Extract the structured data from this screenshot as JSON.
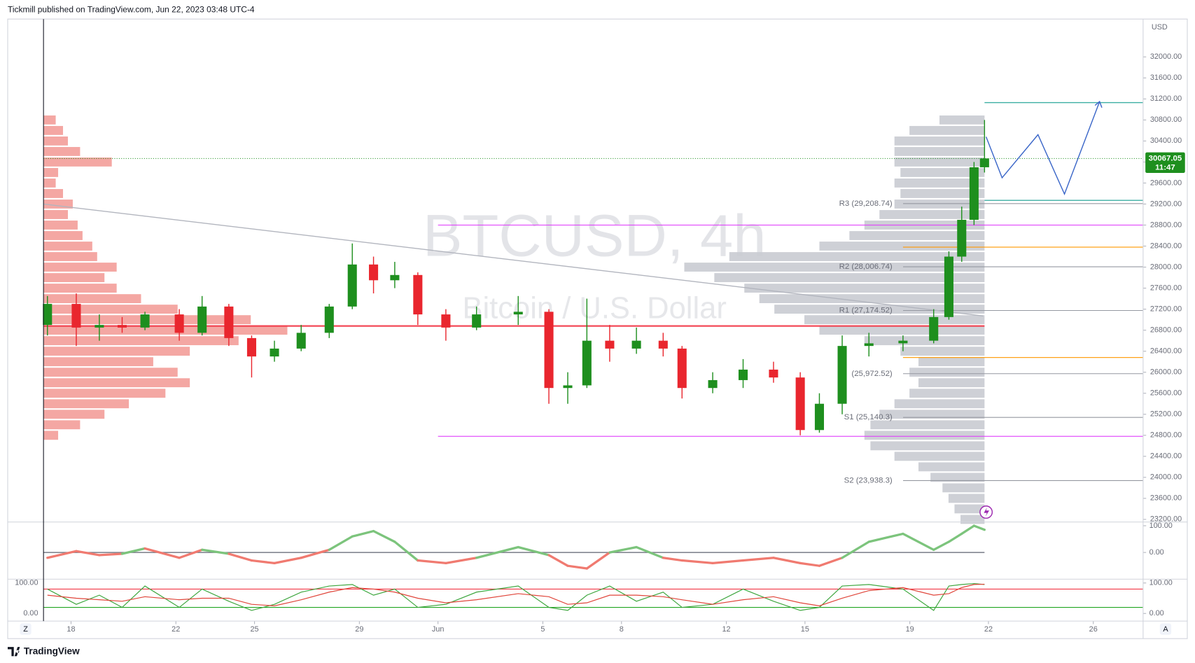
{
  "header": {
    "text": "Tickmill published on TradingView.com, Jun 22, 2023 03:48 UTC-4"
  },
  "footer": {
    "logo": "TradingView"
  },
  "controls": {
    "left": "Z",
    "right": "A"
  },
  "chart_data": [
    {
      "type": "candlestick",
      "title": "BTCUSD, 4h",
      "subtitle": "Bitcoin / U.S. Dollar",
      "y_axis_label": "USD",
      "x": [
        -0.9,
        0.2,
        1.08,
        1.95,
        2.82,
        4.13,
        5.0,
        6.02,
        6.89,
        7.76,
        8.78,
        9.85,
        10.73,
        11.54,
        12.35,
        13.23,
        14.3,
        15.47,
        17.06,
        18.23,
        18.95,
        19.68,
        20.55,
        21.57,
        22.59,
        23.31,
        24.48,
        25.64,
        26.8,
        27.82,
        28.55,
        29.42,
        30.44,
        31.74,
        32.91,
        33.49,
        33.98,
        34.45,
        34.85
      ],
      "open": [
        26900,
        27300,
        26850,
        26900,
        26850,
        27100,
        26750,
        27250,
        26650,
        26300,
        26450,
        26750,
        27250,
        28050,
        27750,
        27850,
        27100,
        26850,
        27100,
        27150,
        25700,
        25750,
        26600,
        26450,
        26600,
        26450,
        25700,
        25850,
        26050,
        25900,
        24900,
        25400,
        26500,
        26550,
        26600,
        27050,
        28200,
        28900,
        29900
      ],
      "high": [
        27450,
        27500,
        27100,
        27050,
        27150,
        27200,
        27450,
        27300,
        26700,
        26600,
        26900,
        27300,
        28450,
        28200,
        28100,
        27900,
        27200,
        27250,
        27450,
        27200,
        26000,
        27400,
        26900,
        26850,
        26750,
        26500,
        26000,
        26250,
        26200,
        26000,
        25600,
        26700,
        26750,
        26700,
        27200,
        28300,
        29150,
        30000,
        30800
      ],
      "low": [
        26700,
        26500,
        26600,
        26750,
        26800,
        26600,
        26700,
        26500,
        25900,
        26200,
        26400,
        26650,
        27200,
        27500,
        27600,
        26900,
        26600,
        26800,
        26900,
        25400,
        25400,
        25700,
        26200,
        26350,
        26300,
        25500,
        25600,
        25700,
        25800,
        24800,
        24850,
        25200,
        26300,
        26400,
        26550,
        27000,
        28100,
        28800,
        29800
      ],
      "close": [
        27300,
        26850,
        26900,
        26850,
        27100,
        26750,
        27250,
        26650,
        26300,
        26450,
        26750,
        27250,
        28050,
        27750,
        27850,
        27100,
        26850,
        27100,
        27150,
        25700,
        25750,
        26600,
        26450,
        26600,
        26450,
        25700,
        25850,
        26050,
        25900,
        24900,
        25400,
        26500,
        26550,
        26600,
        27050,
        28200,
        28900,
        29900,
        30067.05
      ],
      "up_color": "#1e8f1e",
      "down_color": "#e9262e",
      "xlim": [
        -1.05,
        40.9
      ],
      "xticks": [
        {
          "value": 0,
          "label": "18"
        },
        {
          "value": 4,
          "label": "22"
        },
        {
          "value": 7,
          "label": "25"
        },
        {
          "value": 11,
          "label": "29"
        },
        {
          "value": 14,
          "label": "Jun"
        },
        {
          "value": 18,
          "label": "5"
        },
        {
          "value": 21,
          "label": "8"
        },
        {
          "value": 25,
          "label": "12"
        },
        {
          "value": 28,
          "label": "15"
        },
        {
          "value": 32,
          "label": "19"
        },
        {
          "value": 35,
          "label": "22"
        },
        {
          "value": 39,
          "label": "26"
        }
      ],
      "ylim": [
        23150,
        32720
      ],
      "yticks": [
        {
          "value": 23200,
          "label": "23200.00"
        },
        {
          "value": 23600,
          "label": "23600.00"
        },
        {
          "value": 24000,
          "label": "24000.00"
        },
        {
          "value": 24400,
          "label": "24400.00"
        },
        {
          "value": 24800,
          "label": "24800.00"
        },
        {
          "value": 25200,
          "label": "25200.00"
        },
        {
          "value": 25600,
          "label": "25600.00"
        },
        {
          "value": 26000,
          "label": "26000.00"
        },
        {
          "value": 26400,
          "label": "26400.00"
        },
        {
          "value": 26800,
          "label": "26800.00"
        },
        {
          "value": 27200,
          "label": "27200.00"
        },
        {
          "value": 27600,
          "label": "27600.00"
        },
        {
          "value": 28000,
          "label": "28000.00"
        },
        {
          "value": 28400,
          "label": "28400.00"
        },
        {
          "value": 28800,
          "label": "28800.00"
        },
        {
          "value": 29200,
          "label": "29200.00"
        },
        {
          "value": 29600,
          "label": "29600.00"
        },
        {
          "value": 30000,
          "label": "30000.00"
        },
        {
          "value": 30400,
          "label": "30400.00"
        },
        {
          "value": 30800,
          "label": "30800.00"
        },
        {
          "value": 31200,
          "label": "31200.00"
        },
        {
          "value": 31600,
          "label": "31600.00"
        },
        {
          "value": 32000,
          "label": "32000.00"
        }
      ],
      "last_price": {
        "value": 30067.05,
        "countdown": "11:47",
        "color": "#1e8f1e"
      },
      "pivot_color": "#9598a1",
      "pivots": [
        {
          "label": "R3 (29,208.74)",
          "value": 29208.74
        },
        {
          "label": "R2 (28,006.74)",
          "value": 28006.74
        },
        {
          "label": "R1 (27,174.52)",
          "value": 27174.52
        },
        {
          "label": "(25,972.52)",
          "value": 25972.52
        },
        {
          "label": "S1 (25,140.3)",
          "value": 25140.3
        },
        {
          "label": "S2 (23,938.3)",
          "value": 23938.3
        }
      ],
      "levels": [
        {
          "value": 26880,
          "color": "#f23645",
          "from": -1.05,
          "to": 34.85
        },
        {
          "value": 28800,
          "color": "#e040fb",
          "from": 14.0,
          "to": 40.9
        },
        {
          "value": 24780,
          "color": "#e040fb",
          "from": 14.0,
          "to": 40.9
        },
        {
          "value": 28380,
          "color": "#ff9800",
          "from": 31.74,
          "to": 40.9
        },
        {
          "value": 26280,
          "color": "#ff9800",
          "from": 31.74,
          "to": 40.9
        },
        {
          "value": 31130,
          "color": "#26a69a",
          "from": 34.85,
          "to": 40.9
        },
        {
          "value": 29270,
          "color": "#26a69a",
          "from": 34.85,
          "to": 40.9
        }
      ],
      "trendline": {
        "x": [
          -1.05,
          34.8
        ],
        "y": [
          29200,
          27070
        ],
        "color": "#b2b5be"
      },
      "projection": {
        "x": [
          34.91,
          35.52,
          36.89,
          37.9,
          39.24
        ],
        "y": [
          30480,
          29700,
          30520,
          29390,
          31150
        ],
        "color": "#3a66c8"
      },
      "volume_profiles": [
        {
          "side": "left",
          "color": "#f08a84",
          "prices": [
            24800,
            25000,
            25200,
            25400,
            25600,
            25800,
            26000,
            26200,
            26400,
            26600,
            26800,
            27000,
            27200,
            27400,
            27600,
            27800,
            28000,
            28200,
            28400,
            28600,
            28800,
            29000,
            29200,
            29400,
            29600,
            29800,
            30000,
            30200,
            30400,
            30600,
            30800
          ],
          "values": [
            6,
            15,
            25,
            35,
            50,
            60,
            55,
            45,
            60,
            80,
            100,
            85,
            55,
            40,
            30,
            25,
            30,
            22,
            20,
            16,
            14,
            10,
            12,
            8,
            5,
            6,
            28,
            15,
            10,
            8,
            5
          ]
        },
        {
          "side": "right",
          "color": "#c9cbd1",
          "prices": [
            23200,
            23400,
            23600,
            23800,
            24000,
            24200,
            24400,
            24600,
            24800,
            25000,
            25200,
            25400,
            25600,
            25800,
            26000,
            26200,
            26400,
            26600,
            26800,
            27000,
            27200,
            27400,
            27600,
            27800,
            28000,
            28200,
            28400,
            28600,
            28800,
            29000,
            29200,
            29400,
            29600,
            29800,
            30000,
            30200,
            30400,
            30600,
            30800
          ],
          "values": [
            8,
            10,
            12,
            14,
            18,
            22,
            30,
            38,
            40,
            38,
            35,
            30,
            25,
            22,
            25,
            22,
            28,
            40,
            55,
            60,
            70,
            75,
            80,
            90,
            100,
            85,
            55,
            45,
            40,
            35,
            30,
            28,
            30,
            28,
            30,
            30,
            30,
            25,
            15
          ]
        }
      ]
    },
    {
      "type": "oscillator",
      "ylim": [
        -100,
        114
      ],
      "yticks": [
        {
          "value": 100,
          "label": "100.00"
        },
        {
          "value": 0,
          "label": "0.00"
        }
      ],
      "baseline": 0,
      "series": [
        {
          "up_color": "#7cc47c",
          "down_color": "#f07a70",
          "values": [
            -20,
            5,
            -10,
            -5,
            15,
            -20,
            10,
            -5,
            -30,
            -40,
            -20,
            10,
            60,
            80,
            40,
            -30,
            -40,
            -20,
            20,
            -10,
            -50,
            -60,
            0,
            20,
            -20,
            -30,
            -40,
            -30,
            -20,
            -40,
            -50,
            -20,
            40,
            70,
            10,
            40,
            70,
            100,
            85
          ]
        }
      ]
    },
    {
      "type": "stochastic",
      "ylim": [
        -17.5,
        112.5
      ],
      "yticks": [
        {
          "value": 100,
          "label": "100.00"
        },
        {
          "value": 0,
          "label": "0.00"
        }
      ],
      "bands": [
        {
          "value": 80,
          "color": "#f23645"
        },
        {
          "value": 20,
          "color": "#22a622"
        }
      ],
      "series": [
        {
          "color": "#3fa63f",
          "values": [
            80,
            30,
            60,
            20,
            90,
            20,
            80,
            40,
            10,
            30,
            70,
            90,
            95,
            60,
            80,
            20,
            30,
            70,
            90,
            20,
            10,
            60,
            90,
            40,
            70,
            20,
            30,
            80,
            40,
            10,
            20,
            90,
            95,
            80,
            10,
            90,
            95,
            98,
            95
          ]
        },
        {
          "color": "#e0453a",
          "values": [
            60,
            50,
            45,
            40,
            55,
            45,
            50,
            50,
            30,
            25,
            45,
            70,
            85,
            80,
            70,
            50,
            35,
            45,
            65,
            55,
            30,
            35,
            60,
            60,
            55,
            45,
            30,
            45,
            55,
            35,
            25,
            50,
            75,
            85,
            60,
            65,
            85,
            95,
            96
          ]
        }
      ]
    }
  ]
}
